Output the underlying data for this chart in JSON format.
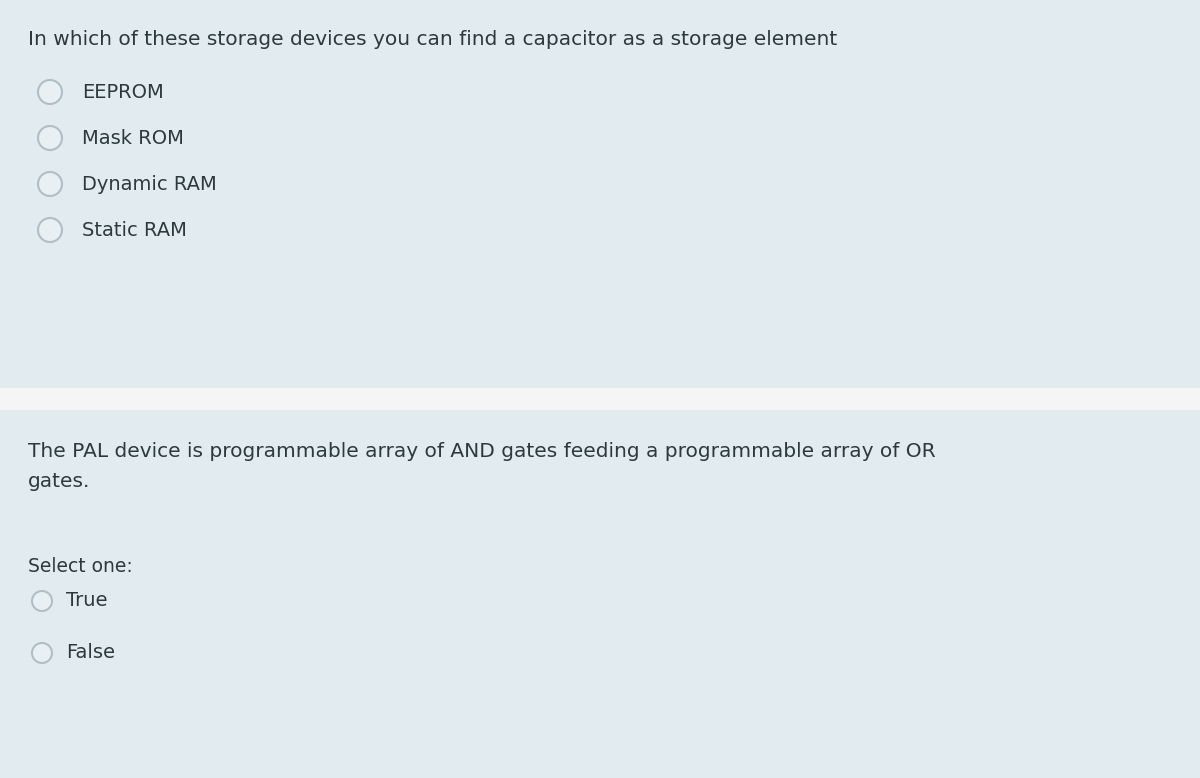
{
  "bg_color": "#e8f0f3",
  "card_bg_color": "#e2ecf0",
  "card_border_color": "#c8d8dd",
  "gap_color": "#f0f0f0",
  "text_color": "#2d3a3a",
  "radio_outer_color": "#b0bec5",
  "radio_inner_color": "#e8f0f3",
  "q1_question": "In which of these storage devices you can find a capacitor as a storage element",
  "q1_options": [
    "EEPROM",
    "Mask ROM",
    "Dynamic RAM",
    "Static RAM"
  ],
  "q2_question": "The PAL device is programmable array of AND gates feeding a programmable array of OR\ngates.",
  "q2_select_label": "Select one:",
  "q2_options": [
    "True",
    "False"
  ],
  "font_size_question": 14.5,
  "font_size_option": 14.0,
  "font_size_select": 13.5,
  "fig_width": 12.0,
  "fig_height": 7.78,
  "dpi": 100
}
